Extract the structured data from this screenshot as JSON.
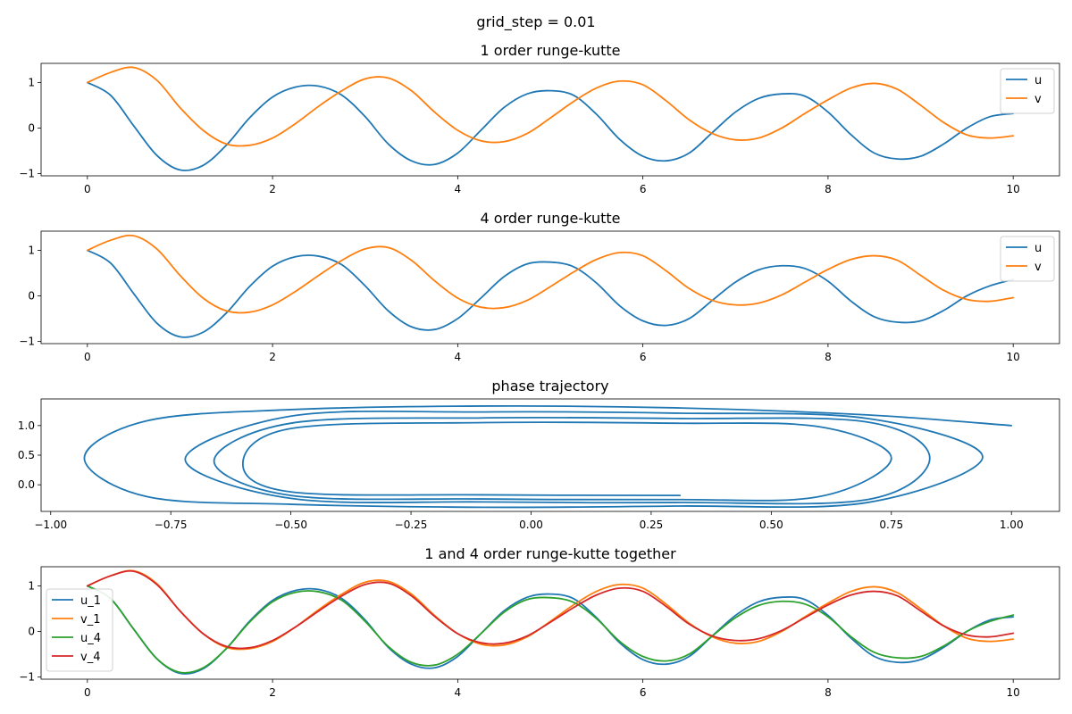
{
  "figure": {
    "suptitle": "grid_step = 0.01"
  },
  "colors": {
    "blue": "#1f77b4",
    "orange": "#ff7f0e",
    "green": "#2ca02c",
    "red": "#d62728"
  },
  "chart_data": [
    {
      "type": "line",
      "title": "1 order runge-kutte",
      "xlim": [
        -0.5,
        10.5
      ],
      "ylim": [
        -1.05,
        1.42
      ],
      "xticks": [
        0,
        2,
        4,
        6,
        8,
        10
      ],
      "xtick_labels": [
        "0",
        "2",
        "4",
        "6",
        "8",
        "10"
      ],
      "yticks": [
        -1,
        0,
        1
      ],
      "ytick_labels": [
        "−1",
        "0",
        "1"
      ],
      "legend": "upper right",
      "series": [
        {
          "name": "u",
          "color": "#1f77b4",
          "x": [
            0,
            0.25,
            0.5,
            0.75,
            1.0,
            1.25,
            1.5,
            1.75,
            2.0,
            2.25,
            2.5,
            2.75,
            3.0,
            3.25,
            3.5,
            3.75,
            4.0,
            4.25,
            4.5,
            4.75,
            5.0,
            5.25,
            5.5,
            5.75,
            6.0,
            6.25,
            6.5,
            6.75,
            7.0,
            7.25,
            7.5,
            7.75,
            8.0,
            8.25,
            8.5,
            8.75,
            9.0,
            9.25,
            9.5,
            9.75,
            10.0
          ],
          "y": [
            1.0,
            0.72,
            0.05,
            -0.6,
            -0.92,
            -0.82,
            -0.38,
            0.22,
            0.68,
            0.9,
            0.92,
            0.72,
            0.25,
            -0.35,
            -0.72,
            -0.8,
            -0.55,
            -0.05,
            0.45,
            0.75,
            0.82,
            0.72,
            0.3,
            -0.25,
            -0.62,
            -0.72,
            -0.55,
            -0.1,
            0.35,
            0.65,
            0.75,
            0.7,
            0.35,
            -0.15,
            -0.55,
            -0.68,
            -0.62,
            -0.35,
            0.0,
            0.25,
            0.32
          ]
        },
        {
          "name": "v",
          "color": "#ff7f0e",
          "x": [
            0,
            0.25,
            0.5,
            0.75,
            1.0,
            1.25,
            1.5,
            1.75,
            2.0,
            2.25,
            2.5,
            2.75,
            3.0,
            3.25,
            3.5,
            3.75,
            4.0,
            4.25,
            4.5,
            4.75,
            5.0,
            5.25,
            5.5,
            5.75,
            6.0,
            6.25,
            6.5,
            6.75,
            7.0,
            7.25,
            7.5,
            7.75,
            8.0,
            8.25,
            8.5,
            8.75,
            9.0,
            9.25,
            9.5,
            9.75,
            10.0
          ],
          "y": [
            1.0,
            1.22,
            1.33,
            1.05,
            0.45,
            -0.05,
            -0.35,
            -0.38,
            -0.22,
            0.1,
            0.48,
            0.82,
            1.08,
            1.1,
            0.82,
            0.35,
            -0.05,
            -0.28,
            -0.3,
            -0.12,
            0.22,
            0.58,
            0.88,
            1.03,
            0.95,
            0.6,
            0.18,
            -0.12,
            -0.26,
            -0.22,
            0.0,
            0.32,
            0.62,
            0.88,
            0.98,
            0.85,
            0.5,
            0.12,
            -0.15,
            -0.22,
            -0.17
          ]
        }
      ]
    },
    {
      "type": "line",
      "title": "4 order runge-kutte",
      "xlim": [
        -0.5,
        10.5
      ],
      "ylim": [
        -1.05,
        1.42
      ],
      "xticks": [
        0,
        2,
        4,
        6,
        8,
        10
      ],
      "xtick_labels": [
        "0",
        "2",
        "4",
        "6",
        "8",
        "10"
      ],
      "yticks": [
        -1,
        0,
        1
      ],
      "ytick_labels": [
        "−1",
        "0",
        "1"
      ],
      "legend": "upper right",
      "series": [
        {
          "name": "u",
          "color": "#1f77b4",
          "x": [
            0,
            0.25,
            0.5,
            0.75,
            1.0,
            1.25,
            1.5,
            1.75,
            2.0,
            2.25,
            2.5,
            2.75,
            3.0,
            3.25,
            3.5,
            3.75,
            4.0,
            4.25,
            4.5,
            4.75,
            5.0,
            5.25,
            5.5,
            5.75,
            6.0,
            6.25,
            6.5,
            6.75,
            7.0,
            7.25,
            7.5,
            7.75,
            8.0,
            8.25,
            8.5,
            8.75,
            9.0,
            9.25,
            9.5,
            9.75,
            10.0
          ],
          "y": [
            1.0,
            0.72,
            0.05,
            -0.6,
            -0.9,
            -0.8,
            -0.38,
            0.2,
            0.65,
            0.86,
            0.87,
            0.68,
            0.22,
            -0.33,
            -0.68,
            -0.74,
            -0.5,
            -0.05,
            0.42,
            0.7,
            0.74,
            0.64,
            0.28,
            -0.22,
            -0.55,
            -0.65,
            -0.5,
            -0.1,
            0.3,
            0.57,
            0.66,
            0.6,
            0.32,
            -0.12,
            -0.46,
            -0.58,
            -0.55,
            -0.32,
            0.0,
            0.22,
            0.36
          ]
        },
        {
          "name": "v",
          "color": "#ff7f0e",
          "x": [
            0,
            0.25,
            0.5,
            0.75,
            1.0,
            1.25,
            1.5,
            1.75,
            2.0,
            2.25,
            2.5,
            2.75,
            3.0,
            3.25,
            3.5,
            3.75,
            4.0,
            4.25,
            4.5,
            4.75,
            5.0,
            5.25,
            5.5,
            5.75,
            6.0,
            6.25,
            6.5,
            6.75,
            7.0,
            7.25,
            7.5,
            7.75,
            8.0,
            8.25,
            8.5,
            8.75,
            9.0,
            9.25,
            9.5,
            9.75,
            10.0
          ],
          "y": [
            1.0,
            1.22,
            1.32,
            1.03,
            0.45,
            -0.05,
            -0.33,
            -0.36,
            -0.2,
            0.1,
            0.45,
            0.78,
            1.03,
            1.06,
            0.78,
            0.33,
            -0.05,
            -0.25,
            -0.26,
            -0.1,
            0.2,
            0.52,
            0.8,
            0.95,
            0.88,
            0.55,
            0.16,
            -0.1,
            -0.2,
            -0.16,
            0.02,
            0.3,
            0.58,
            0.8,
            0.88,
            0.78,
            0.45,
            0.12,
            -0.08,
            -0.12,
            -0.04
          ]
        }
      ]
    },
    {
      "type": "line",
      "title": "phase trajectory",
      "xlim": [
        -1.02,
        1.1
      ],
      "ylim": [
        -0.45,
        1.45
      ],
      "xticks": [
        -1.0,
        -0.75,
        -0.5,
        -0.25,
        0.0,
        0.25,
        0.5,
        0.75,
        1.0
      ],
      "xtick_labels": [
        "−1.00",
        "−0.75",
        "−0.50",
        "−0.25",
        "0.00",
        "0.25",
        "0.50",
        "0.75",
        "1.00"
      ],
      "yticks": [
        0.0,
        0.5,
        1.0
      ],
      "ytick_labels": [
        "0.0",
        "0.5",
        "1.0"
      ],
      "spiral": {
        "u_start": 1.0,
        "u_end": 0.31,
        "v_center": 0.45,
        "v_start": 1.0,
        "turns_u_amp": [
          1.0,
          0.95,
          0.83,
          0.75,
          0.68
        ],
        "turns_v_upper": [
          1.33,
          1.23,
          1.13,
          1.05
        ],
        "turns_v_lower": [
          -0.38,
          -0.3,
          -0.25,
          -0.18
        ]
      },
      "series": [
        {
          "name": "",
          "color": "#1f77b4",
          "x": [
            1.0,
            0.7,
            0.3,
            -0.1,
            -0.5,
            -0.8,
            -0.93,
            -0.8,
            -0.5,
            -0.1,
            0.3,
            0.7,
            0.94,
            0.7,
            0.3,
            -0.1,
            -0.5,
            -0.72,
            -0.5,
            -0.1,
            0.3,
            0.7,
            0.83,
            0.7,
            0.3,
            -0.1,
            -0.5,
            -0.66,
            -0.5,
            -0.1,
            0.3,
            0.6,
            0.75,
            0.6,
            0.3,
            -0.1,
            -0.5,
            -0.6,
            -0.5,
            -0.1,
            0.31
          ],
          "y": [
            1.0,
            1.18,
            1.3,
            1.33,
            1.27,
            1.08,
            0.45,
            -0.2,
            -0.33,
            -0.38,
            -0.36,
            -0.3,
            0.47,
            1.12,
            1.21,
            1.23,
            1.16,
            0.43,
            -0.23,
            -0.29,
            -0.3,
            -0.25,
            0.45,
            1.06,
            1.12,
            1.13,
            1.04,
            0.4,
            -0.18,
            -0.24,
            -0.25,
            -0.2,
            0.45,
            0.98,
            1.04,
            1.05,
            0.95,
            0.35,
            -0.12,
            -0.17,
            -0.18
          ]
        }
      ]
    },
    {
      "type": "line",
      "title": "1 and 4 order runge-kutte together",
      "xlim": [
        -0.5,
        10.5
      ],
      "ylim": [
        -1.05,
        1.42
      ],
      "xticks": [
        0,
        2,
        4,
        6,
        8,
        10
      ],
      "xtick_labels": [
        "0",
        "2",
        "4",
        "6",
        "8",
        "10"
      ],
      "yticks": [
        -1,
        0,
        1
      ],
      "ytick_labels": [
        "−1",
        "0",
        "1"
      ],
      "legend": "center left",
      "series": [
        {
          "name": "u_1",
          "color": "#1f77b4",
          "x": [
            0,
            0.25,
            0.5,
            0.75,
            1.0,
            1.25,
            1.5,
            1.75,
            2.0,
            2.25,
            2.5,
            2.75,
            3.0,
            3.25,
            3.5,
            3.75,
            4.0,
            4.25,
            4.5,
            4.75,
            5.0,
            5.25,
            5.5,
            5.75,
            6.0,
            6.25,
            6.5,
            6.75,
            7.0,
            7.25,
            7.5,
            7.75,
            8.0,
            8.25,
            8.5,
            8.75,
            9.0,
            9.25,
            9.5,
            9.75,
            10.0
          ],
          "y": [
            1.0,
            0.72,
            0.05,
            -0.6,
            -0.92,
            -0.82,
            -0.38,
            0.22,
            0.68,
            0.9,
            0.92,
            0.72,
            0.25,
            -0.35,
            -0.72,
            -0.8,
            -0.55,
            -0.05,
            0.45,
            0.75,
            0.82,
            0.72,
            0.3,
            -0.25,
            -0.62,
            -0.72,
            -0.55,
            -0.1,
            0.35,
            0.65,
            0.75,
            0.7,
            0.35,
            -0.15,
            -0.55,
            -0.68,
            -0.62,
            -0.35,
            0.0,
            0.25,
            0.32
          ]
        },
        {
          "name": "v_1",
          "color": "#ff7f0e",
          "x": [
            0,
            0.25,
            0.5,
            0.75,
            1.0,
            1.25,
            1.5,
            1.75,
            2.0,
            2.25,
            2.5,
            2.75,
            3.0,
            3.25,
            3.5,
            3.75,
            4.0,
            4.25,
            4.5,
            4.75,
            5.0,
            5.25,
            5.5,
            5.75,
            6.0,
            6.25,
            6.5,
            6.75,
            7.0,
            7.25,
            7.5,
            7.75,
            8.0,
            8.25,
            8.5,
            8.75,
            9.0,
            9.25,
            9.5,
            9.75,
            10.0
          ],
          "y": [
            1.0,
            1.22,
            1.33,
            1.05,
            0.45,
            -0.05,
            -0.35,
            -0.38,
            -0.22,
            0.1,
            0.48,
            0.82,
            1.08,
            1.1,
            0.82,
            0.35,
            -0.05,
            -0.28,
            -0.3,
            -0.12,
            0.22,
            0.58,
            0.88,
            1.03,
            0.95,
            0.6,
            0.18,
            -0.12,
            -0.26,
            -0.22,
            0.0,
            0.32,
            0.62,
            0.88,
            0.98,
            0.85,
            0.5,
            0.12,
            -0.15,
            -0.22,
            -0.17
          ]
        },
        {
          "name": "u_4",
          "color": "#2ca02c",
          "x": [
            0,
            0.25,
            0.5,
            0.75,
            1.0,
            1.25,
            1.5,
            1.75,
            2.0,
            2.25,
            2.5,
            2.75,
            3.0,
            3.25,
            3.5,
            3.75,
            4.0,
            4.25,
            4.5,
            4.75,
            5.0,
            5.25,
            5.5,
            5.75,
            6.0,
            6.25,
            6.5,
            6.75,
            7.0,
            7.25,
            7.5,
            7.75,
            8.0,
            8.25,
            8.5,
            8.75,
            9.0,
            9.25,
            9.5,
            9.75,
            10.0
          ],
          "y": [
            1.0,
            0.72,
            0.05,
            -0.6,
            -0.9,
            -0.8,
            -0.38,
            0.2,
            0.65,
            0.86,
            0.87,
            0.68,
            0.22,
            -0.33,
            -0.68,
            -0.74,
            -0.5,
            -0.05,
            0.42,
            0.7,
            0.74,
            0.64,
            0.28,
            -0.22,
            -0.55,
            -0.65,
            -0.5,
            -0.1,
            0.3,
            0.57,
            0.66,
            0.6,
            0.32,
            -0.12,
            -0.46,
            -0.58,
            -0.55,
            -0.32,
            0.0,
            0.22,
            0.36
          ]
        },
        {
          "name": "v_4",
          "color": "#d62728",
          "x": [
            0,
            0.25,
            0.5,
            0.75,
            1.0,
            1.25,
            1.5,
            1.75,
            2.0,
            2.25,
            2.5,
            2.75,
            3.0,
            3.25,
            3.5,
            3.75,
            4.0,
            4.25,
            4.5,
            4.75,
            5.0,
            5.25,
            5.5,
            5.75,
            6.0,
            6.25,
            6.5,
            6.75,
            7.0,
            7.25,
            7.5,
            7.75,
            8.0,
            8.25,
            8.5,
            8.75,
            9.0,
            9.25,
            9.5,
            9.75,
            10.0
          ],
          "y": [
            1.0,
            1.22,
            1.32,
            1.03,
            0.45,
            -0.05,
            -0.33,
            -0.36,
            -0.2,
            0.1,
            0.45,
            0.78,
            1.03,
            1.06,
            0.78,
            0.33,
            -0.05,
            -0.25,
            -0.26,
            -0.1,
            0.2,
            0.52,
            0.8,
            0.95,
            0.88,
            0.55,
            0.16,
            -0.1,
            -0.2,
            -0.16,
            0.02,
            0.3,
            0.58,
            0.8,
            0.88,
            0.78,
            0.45,
            0.12,
            -0.08,
            -0.12,
            -0.04
          ]
        }
      ]
    }
  ]
}
